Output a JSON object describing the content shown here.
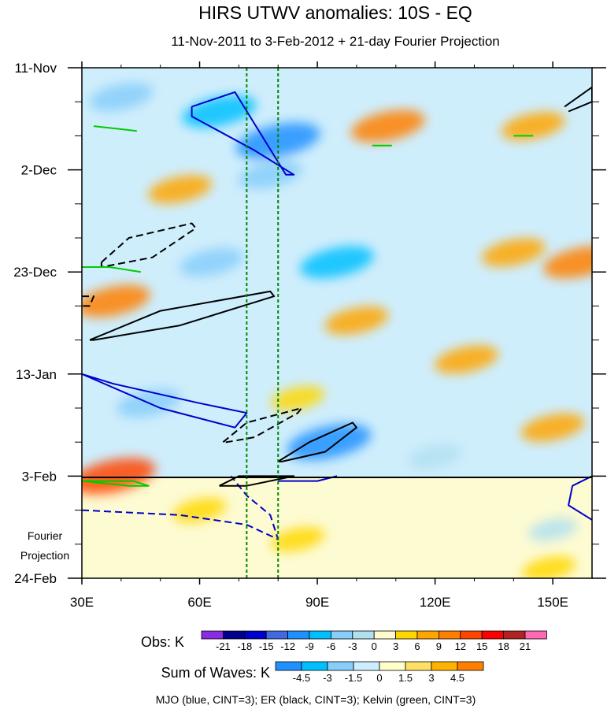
{
  "chart_data": {
    "type": "heatmap",
    "title": "HIRS UTWV anomalies: 10S - EQ",
    "subtitle": "11-Nov-2011 to 3-Feb-2012 + 21-day Fourier Projection",
    "x_axis": {
      "range": [
        30,
        160
      ],
      "ticks": [
        {
          "value": 30,
          "label": "30E"
        },
        {
          "value": 60,
          "label": "60E"
        },
        {
          "value": 90,
          "label": "90E"
        },
        {
          "value": 120,
          "label": "120E"
        },
        {
          "value": 150,
          "label": "150E"
        }
      ]
    },
    "y_axis": {
      "range_days": [
        0,
        105
      ],
      "ticks": [
        {
          "day": 0,
          "label": "11-Nov"
        },
        {
          "day": 21,
          "label": "2-Dec"
        },
        {
          "day": 42,
          "label": "23-Dec"
        },
        {
          "day": 63,
          "label": "13-Jan"
        },
        {
          "day": 84,
          "label": "3-Feb"
        },
        {
          "day": 105,
          "label": "24-Feb"
        }
      ],
      "projection_start_day": 84,
      "projection_label_line1": "Fourier",
      "projection_label_line2": "Projection"
    },
    "reference_longitudes": [
      72,
      80
    ],
    "obs_legend": {
      "label": "Obs: K",
      "levels": [
        "-21",
        "-18",
        "-15",
        "-12",
        "-9",
        "-6",
        "-3",
        "0",
        "3",
        "6",
        "9",
        "12",
        "15",
        "18",
        "21"
      ],
      "colors": [
        "#8a2be2",
        "#00008b",
        "#0000cd",
        "#4169e1",
        "#1e90ff",
        "#00bfff",
        "#87cefa",
        "#b0e0f0",
        "#fffacd",
        "#ffd700",
        "#ffa500",
        "#ff7f00",
        "#ff4500",
        "#ff0000",
        "#b22222",
        "#ff69b4"
      ]
    },
    "waves_legend": {
      "label": "Sum of Waves: K",
      "levels": [
        "-4.5",
        "-3",
        "-1.5",
        "0",
        "1.5",
        "3",
        "4.5"
      ],
      "colors": [
        "#1e90ff",
        "#00bfff",
        "#87cefa",
        "#cceeff",
        "#ffffcc",
        "#ffe066",
        "#ffb300",
        "#ff7f00"
      ]
    },
    "footer": "MJO (blue, CINT=3); ER (black, CINT=3); Kelvin (green, CINT=3)",
    "series": [
      {
        "name": "MJO",
        "color": "#0000cc"
      },
      {
        "name": "ER",
        "color": "#000000"
      },
      {
        "name": "Kelvin",
        "color": "#00cc00"
      }
    ],
    "field_anomalies_K": [
      {
        "lon": 65,
        "day": 9,
        "value": -9
      },
      {
        "lon": 80,
        "day": 15,
        "value": -12
      },
      {
        "lon": 55,
        "day": 25,
        "value": 6
      },
      {
        "lon": 40,
        "day": 6,
        "value": -6
      },
      {
        "lon": 108,
        "day": 12,
        "value": 9
      },
      {
        "lon": 145,
        "day": 12,
        "value": 6
      },
      {
        "lon": 78,
        "day": 22,
        "value": -6
      },
      {
        "lon": 95,
        "day": 40,
        "value": -9
      },
      {
        "lon": 140,
        "day": 38,
        "value": 6
      },
      {
        "lon": 157,
        "day": 40,
        "value": 9
      },
      {
        "lon": 38,
        "day": 48,
        "value": 9
      },
      {
        "lon": 63,
        "day": 40,
        "value": -6
      },
      {
        "lon": 100,
        "day": 52,
        "value": 6
      },
      {
        "lon": 128,
        "day": 60,
        "value": 6
      },
      {
        "lon": 85,
        "day": 68,
        "value": 3
      },
      {
        "lon": 93,
        "day": 77,
        "value": -12
      },
      {
        "lon": 150,
        "day": 74,
        "value": 6
      },
      {
        "lon": 47,
        "day": 69,
        "value": -6
      },
      {
        "lon": 120,
        "day": 80,
        "value": -3
      },
      {
        "lon": 38,
        "day": 84,
        "value": 12
      },
      {
        "lon": 85,
        "day": 97,
        "value": 3
      },
      {
        "lon": 60,
        "day": 91,
        "value": 3
      },
      {
        "lon": 150,
        "day": 95,
        "value": -1.5
      },
      {
        "lon": 149,
        "day": 103,
        "value": 3
      }
    ]
  }
}
